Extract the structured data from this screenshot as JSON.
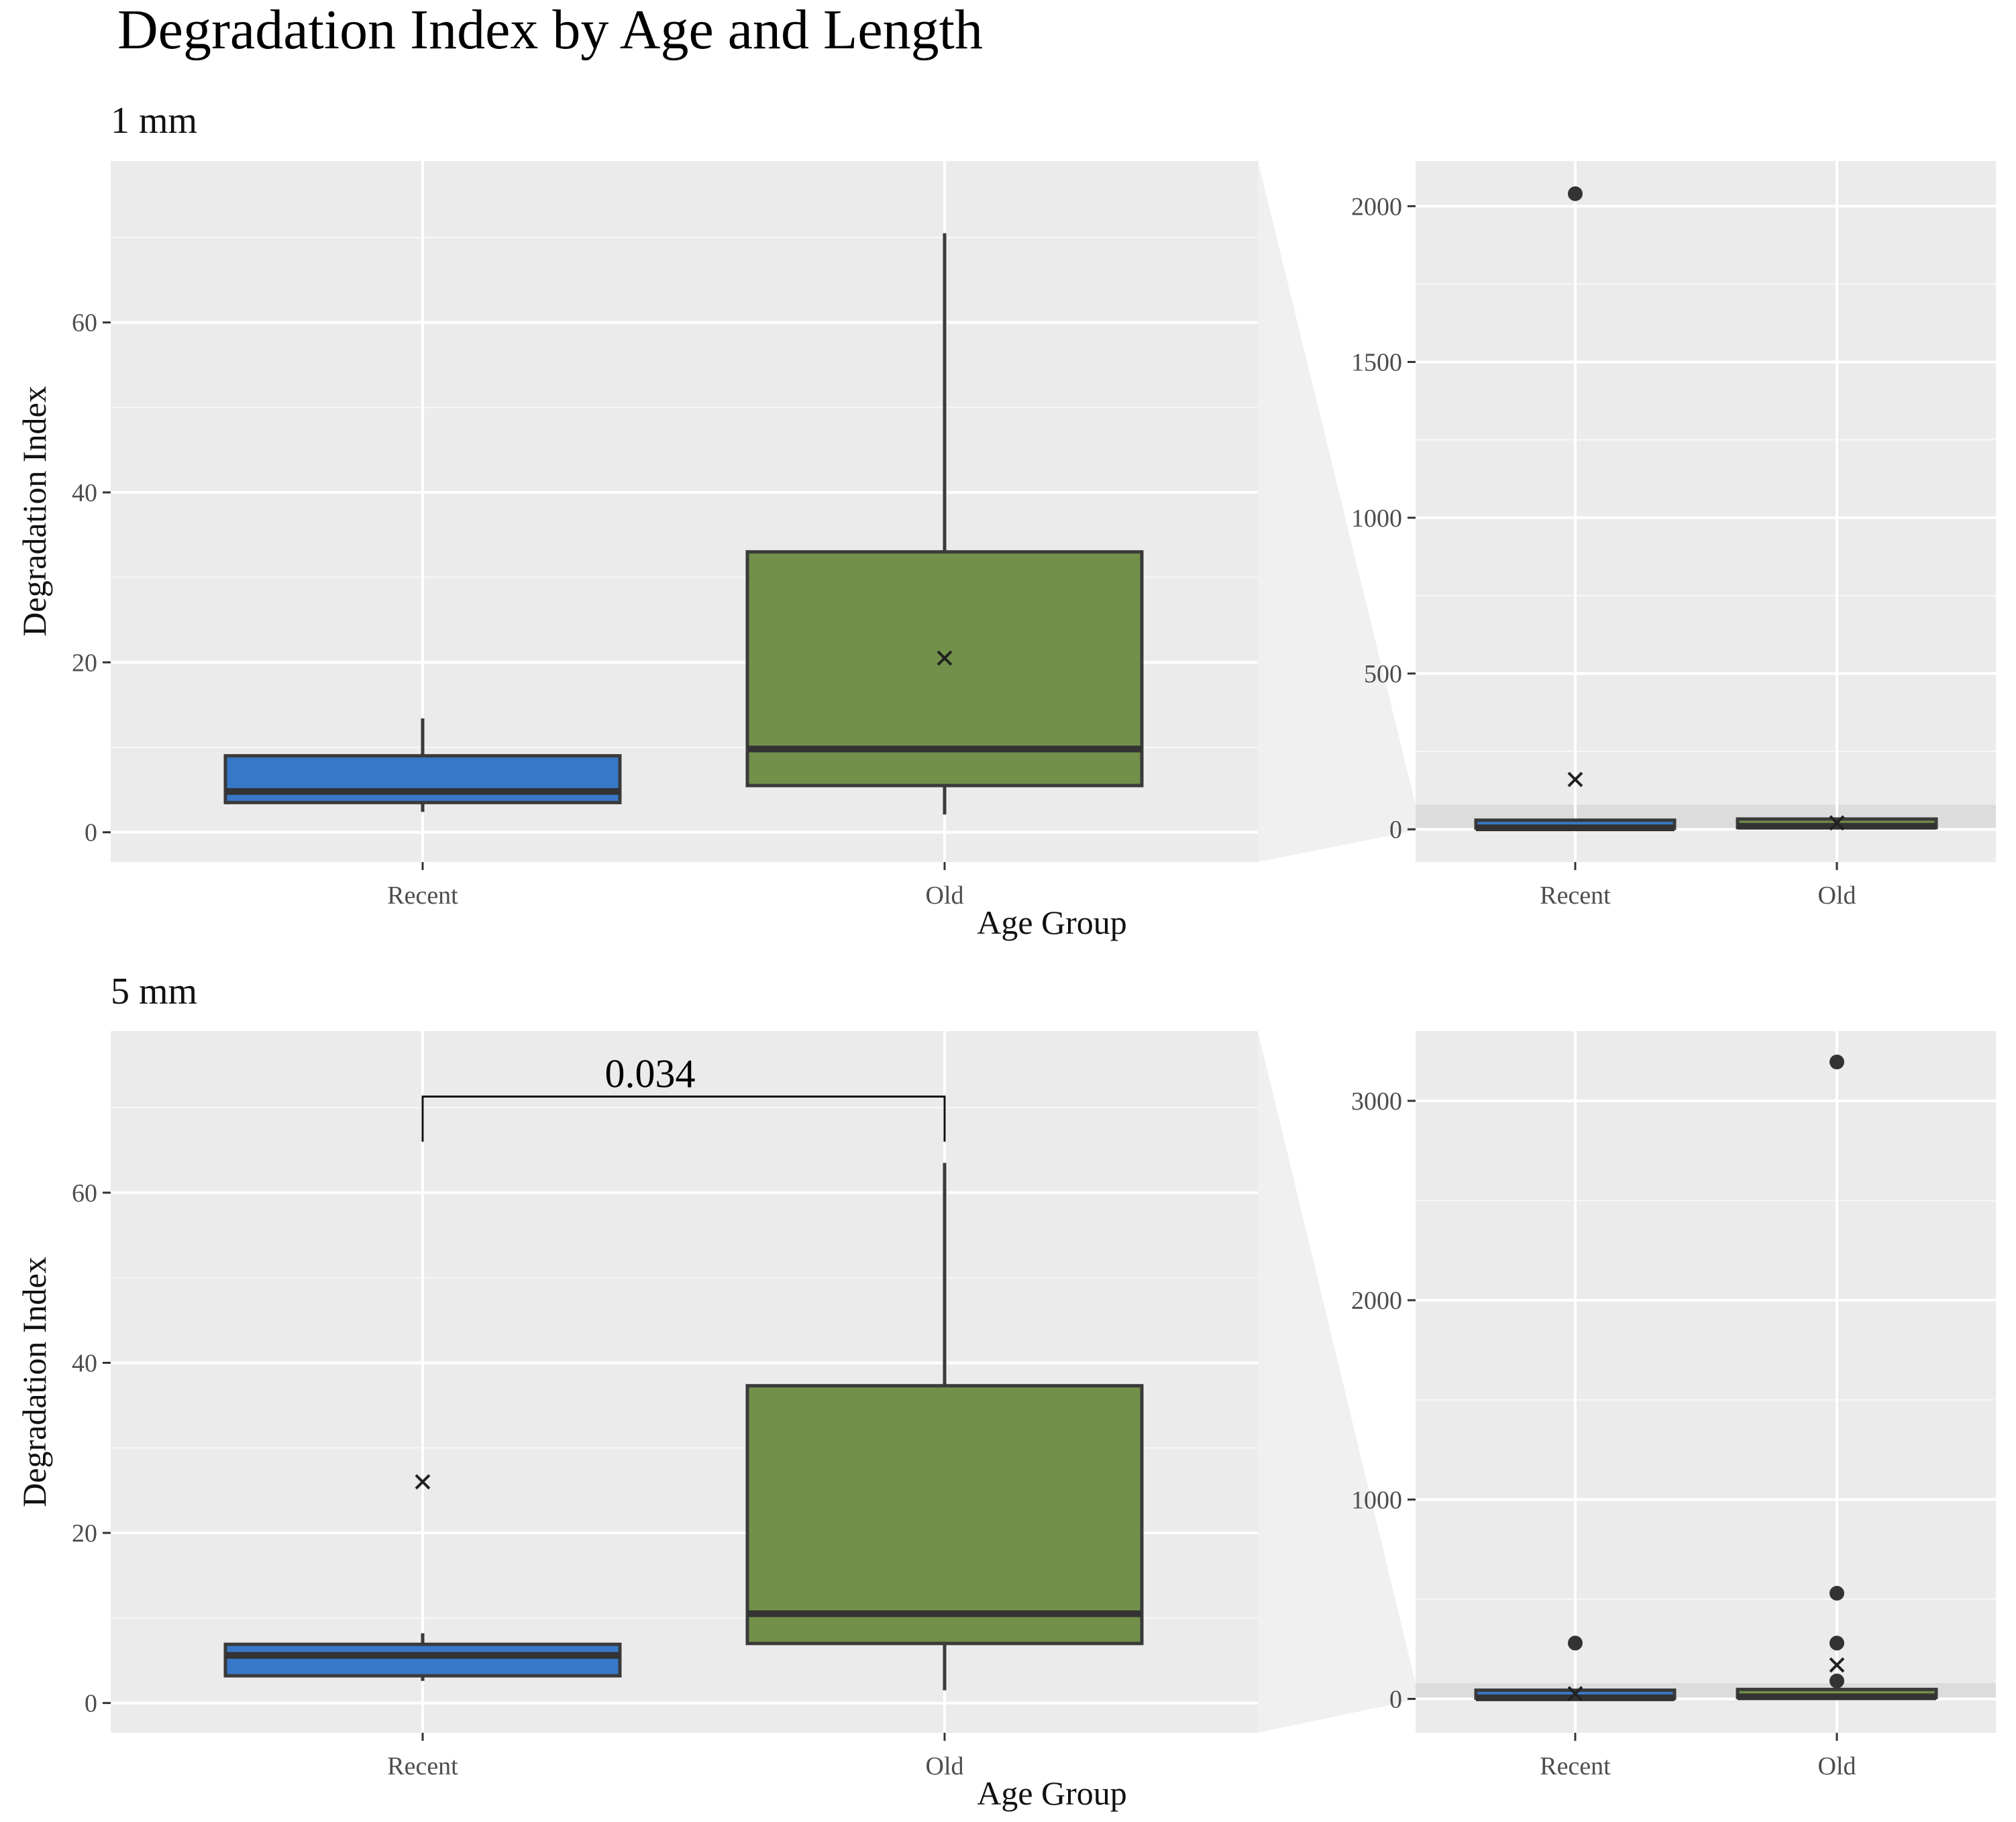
{
  "title": "Degradation Index by Age and Length",
  "colors": {
    "recent": "#3878C8",
    "old": "#72904A",
    "panel": "#EBEBEB",
    "zoom": "#F0F0F0",
    "median": "#333333",
    "outline": "#3a3a3a"
  },
  "chart_data": [
    {
      "type": "box",
      "facet": "1 mm",
      "view": "zoomed",
      "categories": [
        "Recent",
        "Old"
      ],
      "xlabel": "Age Group",
      "ylabel": "Degradation Index",
      "ylim": [
        -3.5,
        79
      ],
      "yticks": [
        0,
        20,
        40,
        60
      ],
      "grid": true,
      "boxes": [
        {
          "group": "Recent",
          "fill": "#3878C8",
          "q1": 3.5,
          "median": 4.8,
          "q3": 9.0,
          "whisker_low": 2.4,
          "whisker_high": 13.4
        },
        {
          "group": "Old",
          "fill": "#72904A",
          "q1": 5.5,
          "median": 9.8,
          "q3": 33.0,
          "whisker_low": 2.1,
          "whisker_high": 70.5,
          "mean": 20.5
        }
      ]
    },
    {
      "type": "box",
      "facet": "1 mm",
      "view": "full",
      "categories": [
        "Recent",
        "Old"
      ],
      "ylim": [
        -105,
        2145
      ],
      "yticks": [
        0,
        500,
        1000,
        1500,
        2000
      ],
      "grid": true,
      "zoom_band": [
        -3.5,
        79
      ],
      "boxes": [
        {
          "group": "Recent",
          "q1": 3.5,
          "median": 4.8,
          "q3": 9.0,
          "mean": 160,
          "outliers": [
            2040
          ]
        },
        {
          "group": "Old",
          "q1": 5.5,
          "median": 9.8,
          "q3": 33.0,
          "mean": 20.5
        }
      ]
    },
    {
      "type": "box",
      "facet": "5 mm",
      "view": "zoomed",
      "categories": [
        "Recent",
        "Old"
      ],
      "xlabel": "Age Group",
      "ylabel": "Degradation Index",
      "ylim": [
        -3.5,
        79
      ],
      "yticks": [
        0,
        20,
        40,
        60
      ],
      "grid": true,
      "boxes": [
        {
          "group": "Recent",
          "fill": "#3878C8",
          "q1": 3.2,
          "median": 5.6,
          "q3": 6.9,
          "whisker_low": 2.6,
          "whisker_high": 8.2,
          "mean": 26.0
        },
        {
          "group": "Old",
          "fill": "#72904A",
          "q1": 7.0,
          "median": 10.5,
          "q3": 37.3,
          "whisker_low": 1.5,
          "whisker_high": 63.5
        }
      ],
      "annotation": {
        "label": "0.034",
        "y": 71.3,
        "tip": 66
      }
    },
    {
      "type": "box",
      "facet": "5 mm",
      "view": "full",
      "categories": [
        "Recent",
        "Old"
      ],
      "ylim": [
        -170,
        3350
      ],
      "yticks": [
        0,
        1000,
        2000,
        3000
      ],
      "grid": true,
      "zoom_band": [
        -3.5,
        79
      ],
      "boxes": [
        {
          "group": "Recent",
          "q1": 3.2,
          "median": 5.6,
          "q3": 6.9,
          "mean": 26.0,
          "outliers": [
            280
          ]
        },
        {
          "group": "Old",
          "q1": 7.0,
          "median": 10.5,
          "q3": 37.3,
          "mean": 170,
          "outliers": [
            3195,
            530,
            280,
            90
          ]
        }
      ]
    }
  ]
}
